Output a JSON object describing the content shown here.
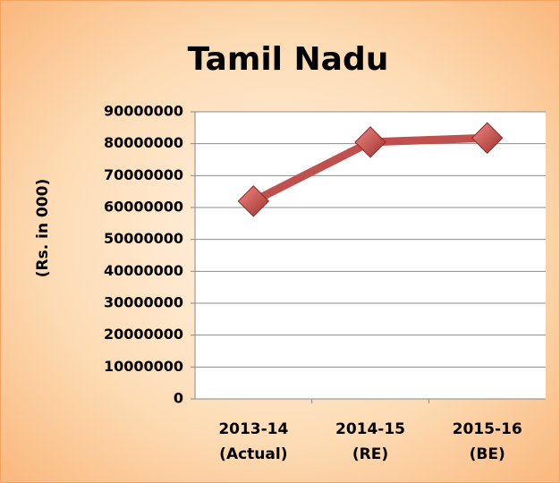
{
  "chart_data": {
    "type": "line",
    "title": "Tamil Nadu",
    "y_label": "(Rs. in 000)",
    "categories": [
      "2013-14 (Actual)",
      "2014-15 (RE)",
      "2015-16 (BE)"
    ],
    "series": [
      {
        "name": "Tamil Nadu",
        "color": "#c0504d",
        "values": [
          62000000,
          80500000,
          81800000
        ]
      }
    ],
    "ylim": [
      0,
      90000000
    ],
    "yticks": [
      0,
      10000000,
      20000000,
      30000000,
      40000000,
      50000000,
      60000000,
      70000000,
      80000000,
      90000000
    ],
    "grid": true
  }
}
